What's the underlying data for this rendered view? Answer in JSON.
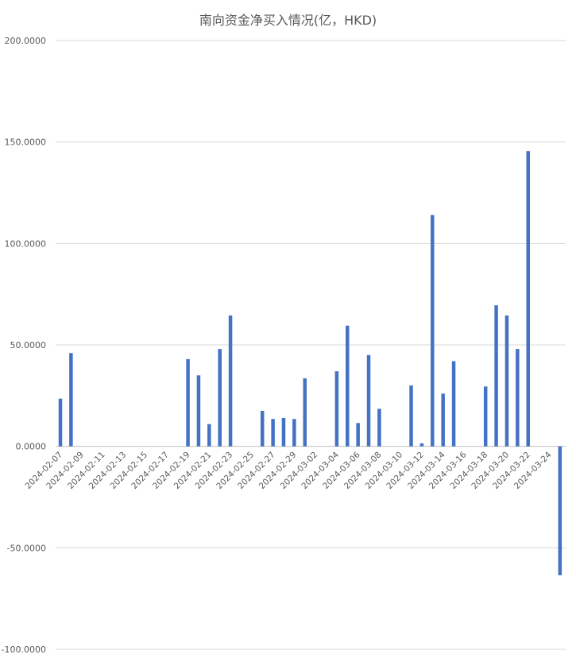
{
  "chart_data": {
    "type": "bar",
    "title": "南向资金净买入情况(亿，HKD)",
    "xlabel": "",
    "ylabel": "",
    "ylim": [
      -100,
      200
    ],
    "y_ticks": [
      200,
      150,
      100,
      50,
      0,
      -50,
      -100
    ],
    "y_tick_labels": [
      "200.0000",
      "150.0000",
      "100.0000",
      "50.0000",
      "0.0000",
      "-50.0000",
      "-100.0000"
    ],
    "x_range": [
      "2024-02-07",
      "2024-03-25"
    ],
    "x_tick_labels": [
      "2024-02-07",
      "2024-02-09",
      "2024-02-11",
      "2024-02-13",
      "2024-02-15",
      "2024-02-17",
      "2024-02-19",
      "2024-02-21",
      "2024-02-23",
      "2024-02-25",
      "2024-02-27",
      "2024-02-29",
      "2024-03-02",
      "2024-03-04",
      "2024-03-06",
      "2024-03-08",
      "2024-03-10",
      "2024-03-12",
      "2024-03-14",
      "2024-03-16",
      "2024-03-18",
      "2024-03-20",
      "2024-03-22",
      "2024-03-24"
    ],
    "grid": true,
    "bar_color": "#4472C4",
    "grid_color": "#d9d9d9",
    "text_color": "#595959",
    "points": [
      {
        "x": "2024-02-07",
        "y": 23.5
      },
      {
        "x": "2024-02-08",
        "y": 46.0
      },
      {
        "x": "2024-02-19",
        "y": 43.0
      },
      {
        "x": "2024-02-20",
        "y": 35.0
      },
      {
        "x": "2024-02-21",
        "y": 11.0
      },
      {
        "x": "2024-02-22",
        "y": 48.0
      },
      {
        "x": "2024-02-23",
        "y": 64.5
      },
      {
        "x": "2024-02-26",
        "y": 17.5
      },
      {
        "x": "2024-02-27",
        "y": 13.5
      },
      {
        "x": "2024-02-28",
        "y": 14.0
      },
      {
        "x": "2024-02-29",
        "y": 13.5
      },
      {
        "x": "2024-03-01",
        "y": 33.5
      },
      {
        "x": "2024-03-04",
        "y": 37.0
      },
      {
        "x": "2024-03-05",
        "y": 59.5
      },
      {
        "x": "2024-03-06",
        "y": 11.5
      },
      {
        "x": "2024-03-07",
        "y": 45.0
      },
      {
        "x": "2024-03-08",
        "y": 18.5
      },
      {
        "x": "2024-03-11",
        "y": 30.0
      },
      {
        "x": "2024-03-12",
        "y": 1.5
      },
      {
        "x": "2024-03-13",
        "y": 114.0
      },
      {
        "x": "2024-03-14",
        "y": 26.0
      },
      {
        "x": "2024-03-15",
        "y": 42.0
      },
      {
        "x": "2024-03-18",
        "y": 29.5
      },
      {
        "x": "2024-03-19",
        "y": 69.5
      },
      {
        "x": "2024-03-20",
        "y": 64.5
      },
      {
        "x": "2024-03-21",
        "y": 48.0
      },
      {
        "x": "2024-03-22",
        "y": 145.5
      },
      {
        "x": "2024-03-25",
        "y": -63.5
      }
    ]
  }
}
